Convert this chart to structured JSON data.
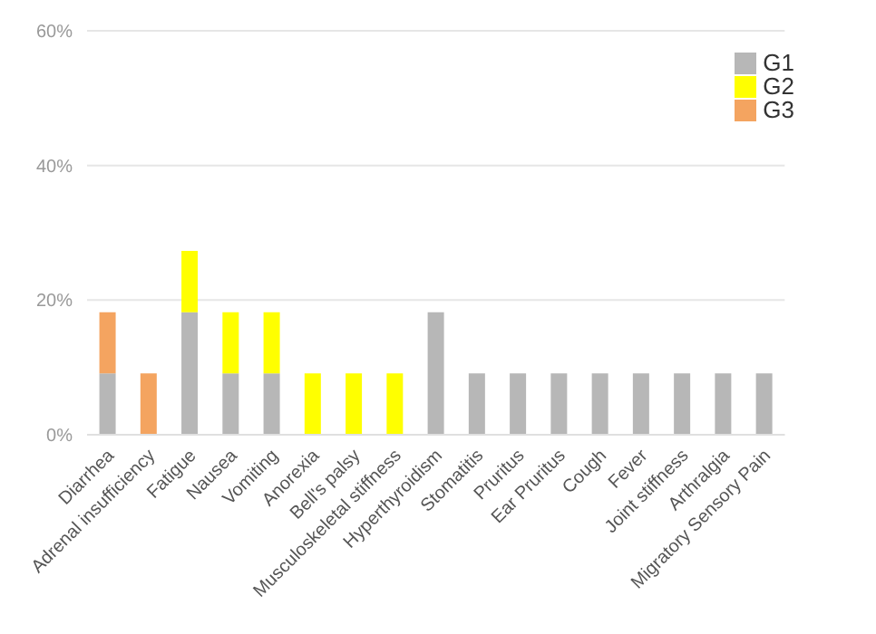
{
  "chart_data": {
    "type": "bar",
    "stacked": true,
    "categories": [
      "Diarrhea",
      "Adrenal insufficiency",
      "Fatigue",
      "Nausea",
      "Vomiting",
      "Anorexia",
      "Bell's palsy",
      "Musculoskeletal stiffness",
      "Hyperthyroidism",
      "Stomatitis",
      "Pruritus",
      "Ear Pruritus",
      "Cough",
      "Fever",
      "Joint stiffness",
      "Arthralgia",
      "Migratory Sensory Pain"
    ],
    "series": [
      {
        "name": "G1",
        "color": "#b7b7b7",
        "values": [
          9.1,
          null,
          18.2,
          9.1,
          9.1,
          null,
          null,
          null,
          18.2,
          9.1,
          9.1,
          9.1,
          9.1,
          9.1,
          9.1,
          9.1,
          9.1
        ]
      },
      {
        "name": "G2",
        "color": "#ffff00",
        "values": [
          null,
          null,
          9.1,
          9.1,
          9.1,
          9.1,
          9.1,
          9.1,
          null,
          null,
          null,
          null,
          null,
          null,
          null,
          null,
          null
        ]
      },
      {
        "name": "G3",
        "color": "#f4a460",
        "values": [
          9.1,
          9.1,
          null,
          null,
          null,
          null,
          null,
          null,
          null,
          null,
          null,
          null,
          null,
          null,
          null,
          null,
          null
        ]
      }
    ],
    "ylim": [
      0,
      60
    ],
    "yticks": [
      {
        "value": 0,
        "label": "0%"
      },
      {
        "value": 20,
        "label": "20%"
      },
      {
        "value": 40,
        "label": "40%"
      },
      {
        "value": 60,
        "label": "60%"
      }
    ],
    "grid": "y",
    "legend": "top right"
  }
}
